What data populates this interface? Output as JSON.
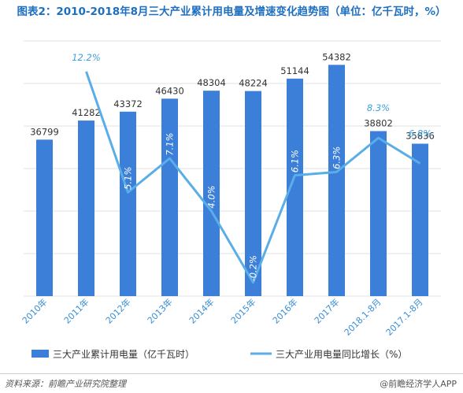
{
  "title": "图表2：2010-2018年8月三大产业累计用电量及增速变化趋势图（单位：亿千瓦时，%）",
  "colors": {
    "bar": "#3c7fd8",
    "line": "#5aaee8",
    "title": "#1f6fc1",
    "grid": "#e2e2e2"
  },
  "chart_data": {
    "type": "bar",
    "categories": [
      "2010年",
      "2011年",
      "2012年",
      "2013年",
      "2014年",
      "2015年",
      "2016年",
      "2017年",
      "2018.1-8月",
      "2017.1-8月"
    ],
    "series": [
      {
        "name": "三大产业累计用电量（亿千瓦时）",
        "type": "bar",
        "values": [
          36799,
          41282,
          43372,
          46430,
          48304,
          48224,
          51144,
          54382,
          38802,
          35836
        ],
        "labels": [
          "36799",
          "41282",
          "43372",
          "46430",
          "48304",
          "48224",
          "51144",
          "54382",
          "38802",
          "35836"
        ]
      },
      {
        "name": "三大产业用电量同比增长（%）",
        "type": "line",
        "axis": "secondary",
        "values": [
          null,
          12.2,
          5.1,
          7.1,
          4.0,
          -0.2,
          6.1,
          6.3,
          8.3,
          6.8
        ],
        "labels": [
          "",
          "12.2%",
          "5.1%",
          "7.1%",
          "4.0%",
          "-0.2%",
          "6.1%",
          "6.3%",
          "8.3%",
          "6.8%"
        ]
      }
    ],
    "ylim": [
      0,
      60000
    ],
    "y2lim": [
      -1,
      14
    ],
    "grid": true,
    "legend": "bottom"
  },
  "legend": {
    "bar_label": "三大产业累计用电量（亿千瓦时）",
    "line_label": "三大产业用电量同比增长（%）"
  },
  "footer": {
    "source": "资料来源：前瞻产业研究院整理",
    "credit": "@前瞻经济学人APP"
  }
}
